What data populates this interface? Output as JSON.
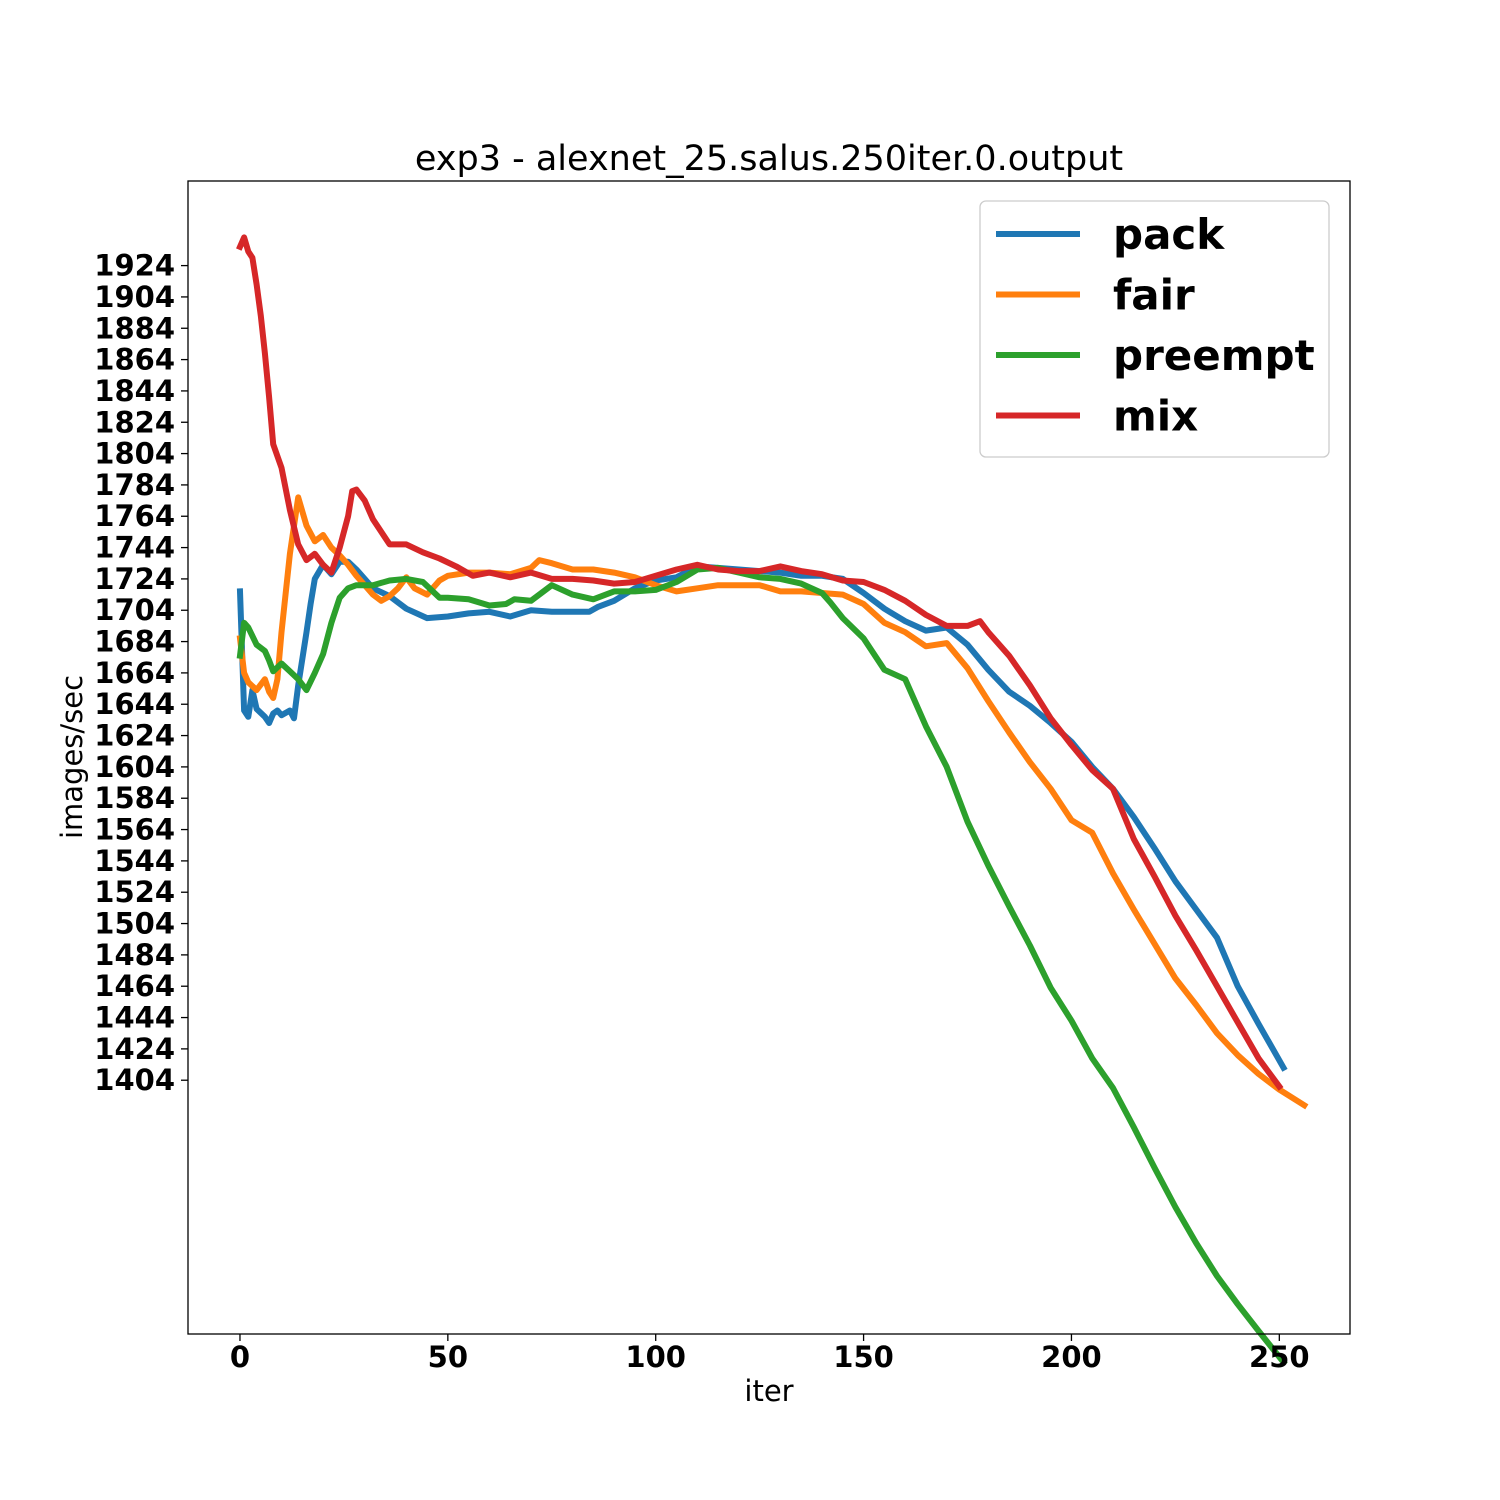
{
  "chart_data": {
    "type": "line",
    "title": "exp3 - alexnet_25.salus.250iter.0.output",
    "xlabel": "iter",
    "ylabel": "images/sec",
    "xlim": [
      -12.5,
      267
    ],
    "ylim": [
      1242,
      1978
    ],
    "xticks": [
      0,
      50,
      100,
      150,
      200,
      250
    ],
    "yticks": [
      1404,
      1424,
      1444,
      1464,
      1484,
      1504,
      1524,
      1544,
      1564,
      1584,
      1604,
      1624,
      1644,
      1664,
      1684,
      1704,
      1724,
      1744,
      1764,
      1784,
      1804,
      1824,
      1844,
      1864,
      1884,
      1904,
      1924
    ],
    "legend_position": "top-right",
    "grid": false,
    "series": [
      {
        "name": "pack",
        "color": "#1f77b4",
        "x": [
          0,
          1,
          2,
          3,
          4,
          6,
          7,
          8,
          9,
          10,
          12,
          13,
          14,
          16,
          17,
          18,
          20,
          22,
          24,
          26,
          28,
          32,
          36,
          40,
          45,
          50,
          55,
          60,
          65,
          70,
          75,
          80,
          84,
          86,
          90,
          95,
          100,
          105,
          110,
          115,
          120,
          125,
          130,
          135,
          140,
          145,
          150,
          155,
          160,
          165,
          170,
          175,
          180,
          185,
          190,
          195,
          200,
          205,
          210,
          215,
          220,
          225,
          230,
          235,
          240,
          245,
          251
        ],
        "y": [
          1716,
          1640,
          1636,
          1653,
          1641,
          1636,
          1632,
          1638,
          1640,
          1637,
          1640,
          1635,
          1656,
          1690,
          1708,
          1724,
          1733,
          1727,
          1735,
          1735,
          1730,
          1718,
          1713,
          1705,
          1699,
          1700,
          1702,
          1703,
          1700,
          1704,
          1703,
          1703,
          1703,
          1706,
          1710,
          1718,
          1723,
          1725,
          1732,
          1731,
          1730,
          1729,
          1728,
          1726,
          1726,
          1724,
          1715,
          1705,
          1697,
          1691,
          1693,
          1682,
          1666,
          1652,
          1643,
          1632,
          1620,
          1604,
          1590,
          1572,
          1552,
          1531,
          1513,
          1495,
          1464,
          1440,
          1412
        ]
      },
      {
        "name": "fair",
        "color": "#ff7f0e",
        "x": [
          0,
          1,
          2,
          4,
          6,
          7,
          8,
          9,
          10,
          12,
          14,
          16,
          18,
          20,
          22,
          24,
          26,
          28,
          30,
          32,
          34,
          36,
          38,
          40,
          42,
          45,
          48,
          50,
          55,
          60,
          65,
          70,
          72,
          75,
          80,
          85,
          90,
          95,
          100,
          105,
          110,
          115,
          120,
          125,
          130,
          135,
          140,
          145,
          150,
          155,
          160,
          165,
          170,
          175,
          180,
          185,
          190,
          195,
          200,
          205,
          210,
          215,
          220,
          225,
          230,
          235,
          240,
          245,
          250,
          256
        ],
        "y": [
          1686,
          1664,
          1658,
          1653,
          1660,
          1652,
          1648,
          1660,
          1690,
          1740,
          1776,
          1758,
          1748,
          1752,
          1744,
          1739,
          1733,
          1726,
          1720,
          1714,
          1710,
          1713,
          1718,
          1725,
          1718,
          1714,
          1723,
          1726,
          1728,
          1728,
          1727,
          1731,
          1736,
          1734,
          1730,
          1730,
          1728,
          1725,
          1720,
          1716,
          1718,
          1720,
          1720,
          1720,
          1716,
          1716,
          1715,
          1714,
          1708,
          1696,
          1690,
          1681,
          1683,
          1667,
          1646,
          1626,
          1607,
          1590,
          1570,
          1562,
          1536,
          1513,
          1491,
          1469,
          1452,
          1434,
          1420,
          1408,
          1398,
          1388
        ]
      },
      {
        "name": "preempt",
        "color": "#2ca02c",
        "x": [
          0,
          1,
          2,
          4,
          6,
          7,
          8,
          10,
          12,
          14,
          16,
          18,
          20,
          22,
          24,
          26,
          28,
          32,
          36,
          40,
          44,
          48,
          50,
          55,
          60,
          64,
          66,
          70,
          75,
          80,
          85,
          90,
          95,
          100,
          105,
          110,
          115,
          120,
          125,
          130,
          135,
          140,
          142,
          145,
          150,
          155,
          160,
          165,
          170,
          175,
          180,
          185,
          190,
          195,
          200,
          205,
          210,
          215,
          220,
          225,
          230,
          235,
          240,
          245,
          251
        ],
        "y": [
          1675,
          1696,
          1693,
          1682,
          1678,
          1672,
          1665,
          1670,
          1665,
          1660,
          1653,
          1664,
          1676,
          1696,
          1712,
          1718,
          1720,
          1720,
          1723,
          1724,
          1722,
          1712,
          1712,
          1711,
          1707,
          1708,
          1711,
          1710,
          1720,
          1714,
          1711,
          1716,
          1716,
          1717,
          1722,
          1730,
          1731,
          1728,
          1725,
          1724,
          1721,
          1715,
          1709,
          1699,
          1686,
          1666,
          1660,
          1630,
          1604,
          1569,
          1541,
          1515,
          1490,
          1463,
          1442,
          1418,
          1399,
          1374,
          1348,
          1323,
          1300,
          1279,
          1261,
          1244,
          1224
        ]
      },
      {
        "name": "mix",
        "color": "#d62728",
        "x": [
          0,
          1,
          2,
          3,
          4,
          5,
          6,
          7,
          8,
          10,
          12,
          14,
          16,
          18,
          20,
          22,
          24,
          26,
          27,
          28,
          30,
          32,
          34,
          36,
          40,
          44,
          48,
          52,
          56,
          60,
          65,
          70,
          75,
          80,
          85,
          90,
          95,
          100,
          105,
          110,
          115,
          120,
          125,
          130,
          135,
          140,
          145,
          150,
          155,
          160,
          165,
          170,
          175,
          178,
          180,
          185,
          190,
          195,
          200,
          205,
          210,
          215,
          220,
          225,
          230,
          235,
          240,
          245,
          250
        ],
        "y": [
          1936,
          1942,
          1933,
          1929,
          1912,
          1892,
          1868,
          1840,
          1810,
          1795,
          1768,
          1746,
          1736,
          1740,
          1733,
          1728,
          1744,
          1764,
          1780,
          1781,
          1774,
          1762,
          1754,
          1746,
          1746,
          1741,
          1737,
          1732,
          1726,
          1728,
          1725,
          1728,
          1724,
          1724,
          1723,
          1721,
          1722,
          1726,
          1730,
          1733,
          1730,
          1729,
          1729,
          1732,
          1729,
          1727,
          1723,
          1722,
          1717,
          1710,
          1701,
          1694,
          1694,
          1697,
          1690,
          1675,
          1656,
          1635,
          1618,
          1602,
          1590,
          1558,
          1534,
          1509,
          1487,
          1464,
          1441,
          1418,
          1400
        ]
      }
    ]
  }
}
